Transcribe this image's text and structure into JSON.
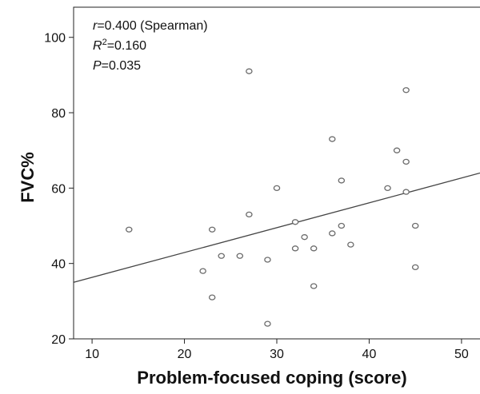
{
  "chart_data": {
    "type": "scatter",
    "xlabel": "Problem-focused coping (score)",
    "ylabel": "FVC%",
    "xlim": [
      8,
      52
    ],
    "ylim": [
      20,
      108
    ],
    "xticks": [
      10,
      20,
      30,
      40,
      50
    ],
    "yticks": [
      20,
      40,
      60,
      80,
      100
    ],
    "grid": false,
    "annotations": {
      "r_symbol": "r",
      "r_text": "=0.400 (Spearman)",
      "r2_symbol": "R",
      "r2_sup": "2",
      "r2_text": "=0.160",
      "p_symbol": "P",
      "p_text": "=0.035"
    },
    "points": [
      {
        "x": 14,
        "y": 49
      },
      {
        "x": 22,
        "y": 38
      },
      {
        "x": 23,
        "y": 49
      },
      {
        "x": 23,
        "y": 31
      },
      {
        "x": 24,
        "y": 42
      },
      {
        "x": 26,
        "y": 42
      },
      {
        "x": 27,
        "y": 91
      },
      {
        "x": 27,
        "y": 53
      },
      {
        "x": 29,
        "y": 41
      },
      {
        "x": 29,
        "y": 24
      },
      {
        "x": 30,
        "y": 60
      },
      {
        "x": 32,
        "y": 51
      },
      {
        "x": 32,
        "y": 44
      },
      {
        "x": 33,
        "y": 47
      },
      {
        "x": 34,
        "y": 44
      },
      {
        "x": 34,
        "y": 34
      },
      {
        "x": 36,
        "y": 73
      },
      {
        "x": 36,
        "y": 48
      },
      {
        "x": 37,
        "y": 62
      },
      {
        "x": 37,
        "y": 50
      },
      {
        "x": 38,
        "y": 45
      },
      {
        "x": 42,
        "y": 60
      },
      {
        "x": 43,
        "y": 70
      },
      {
        "x": 44,
        "y": 86
      },
      {
        "x": 44,
        "y": 67
      },
      {
        "x": 44,
        "y": 59
      },
      {
        "x": 45,
        "y": 50
      },
      {
        "x": 45,
        "y": 39
      }
    ],
    "fit_line": {
      "x": [
        8,
        52
      ],
      "y": [
        35,
        64
      ]
    }
  }
}
